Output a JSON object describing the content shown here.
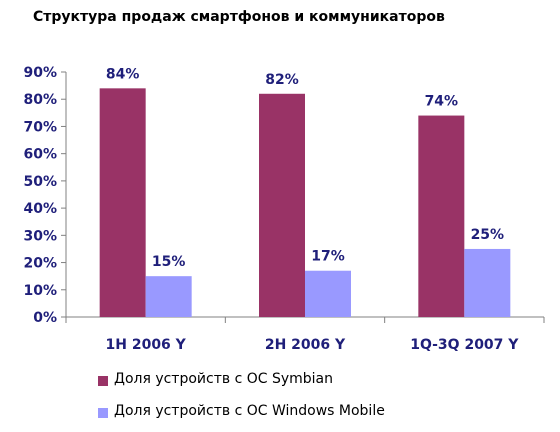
{
  "chart_data": {
    "type": "bar",
    "title": "Структура продаж смартфонов и коммуникаторов",
    "categories": [
      "1H 2006 Y",
      "2H 2006 Y",
      "1Q-3Q 2007 Y"
    ],
    "series": [
      {
        "name": "Доля устройств с ОС Symbian",
        "color": "#993366",
        "values": [
          84,
          82,
          74
        ],
        "labels": [
          "84%",
          "82%",
          "74%"
        ]
      },
      {
        "name": "Доля устройств с ОС Windows Mobile",
        "color": "#9999FF",
        "values": [
          15,
          17,
          25
        ],
        "labels": [
          "15%",
          "17%",
          "25%"
        ]
      }
    ],
    "yticks": [
      "0%",
      "10%",
      "20%",
      "30%",
      "40%",
      "50%",
      "60%",
      "70%",
      "80%",
      "90%"
    ],
    "ylim": [
      0,
      90
    ],
    "axis_color": "#1F1F7A",
    "grid": false,
    "legend_position": "bottom"
  }
}
